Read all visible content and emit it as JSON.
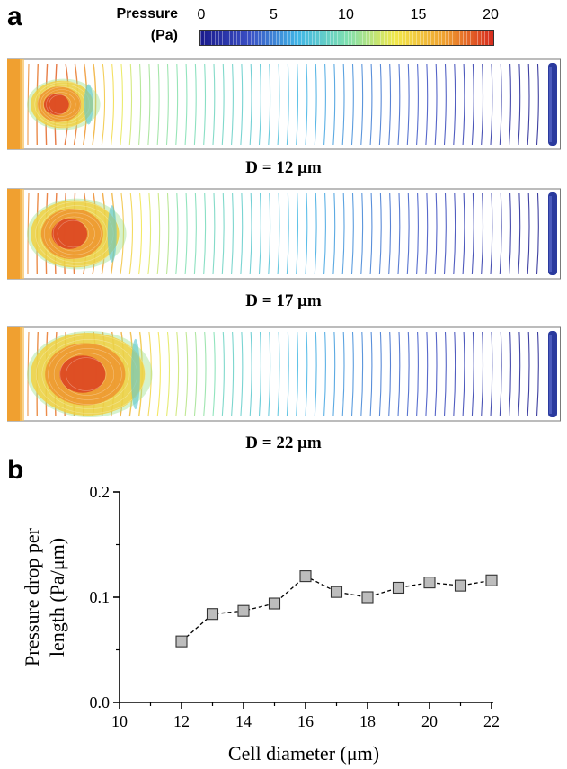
{
  "panel_a": {
    "letter": "a",
    "colorbar": {
      "title_line1": "Pressure",
      "title_line2": "(Pa)",
      "ticks": [
        "0",
        "5",
        "10",
        "15",
        "20"
      ],
      "tick_values": [
        0,
        5,
        10,
        15,
        20
      ],
      "min": 0,
      "max": 20,
      "colors": [
        "#1a1a8c",
        "#3a4fc4",
        "#41b6e6",
        "#7fe0b0",
        "#f2e84a",
        "#f0a030",
        "#d62a1e"
      ]
    },
    "simulations": [
      {
        "label": "D = 12 μm",
        "diameter": 12
      },
      {
        "label": "D = 17 μm",
        "diameter": 17
      },
      {
        "label": "D = 22 μm",
        "diameter": 22
      }
    ]
  },
  "panel_b": {
    "letter": "b"
  },
  "chart_data": {
    "type": "line",
    "title": "",
    "xlabel": "Cell diameter (μm)",
    "ylabel_line1": "Pressure drop per",
    "ylabel_line2": "length (Pa/μm)",
    "xlim": [
      10,
      22
    ],
    "ylim": [
      0.0,
      0.2
    ],
    "xticks": [
      10,
      12,
      14,
      16,
      18,
      20,
      22
    ],
    "xtick_labels": [
      "10",
      "12",
      "14",
      "16",
      "18",
      "20",
      "22"
    ],
    "yticks": [
      0.0,
      0.1,
      0.2
    ],
    "ytick_labels": [
      "0.0",
      "0.1",
      "0.2"
    ],
    "series": [
      {
        "name": "Pressure drop per length",
        "x": [
          12,
          13,
          14,
          15,
          16,
          17,
          18,
          19,
          20,
          21,
          22
        ],
        "values": [
          0.058,
          0.084,
          0.087,
          0.094,
          0.12,
          0.105,
          0.1,
          0.109,
          0.114,
          0.111,
          0.116
        ],
        "marker": "square",
        "marker_color": "#bdbdbd",
        "line_style": "dashed"
      }
    ]
  }
}
